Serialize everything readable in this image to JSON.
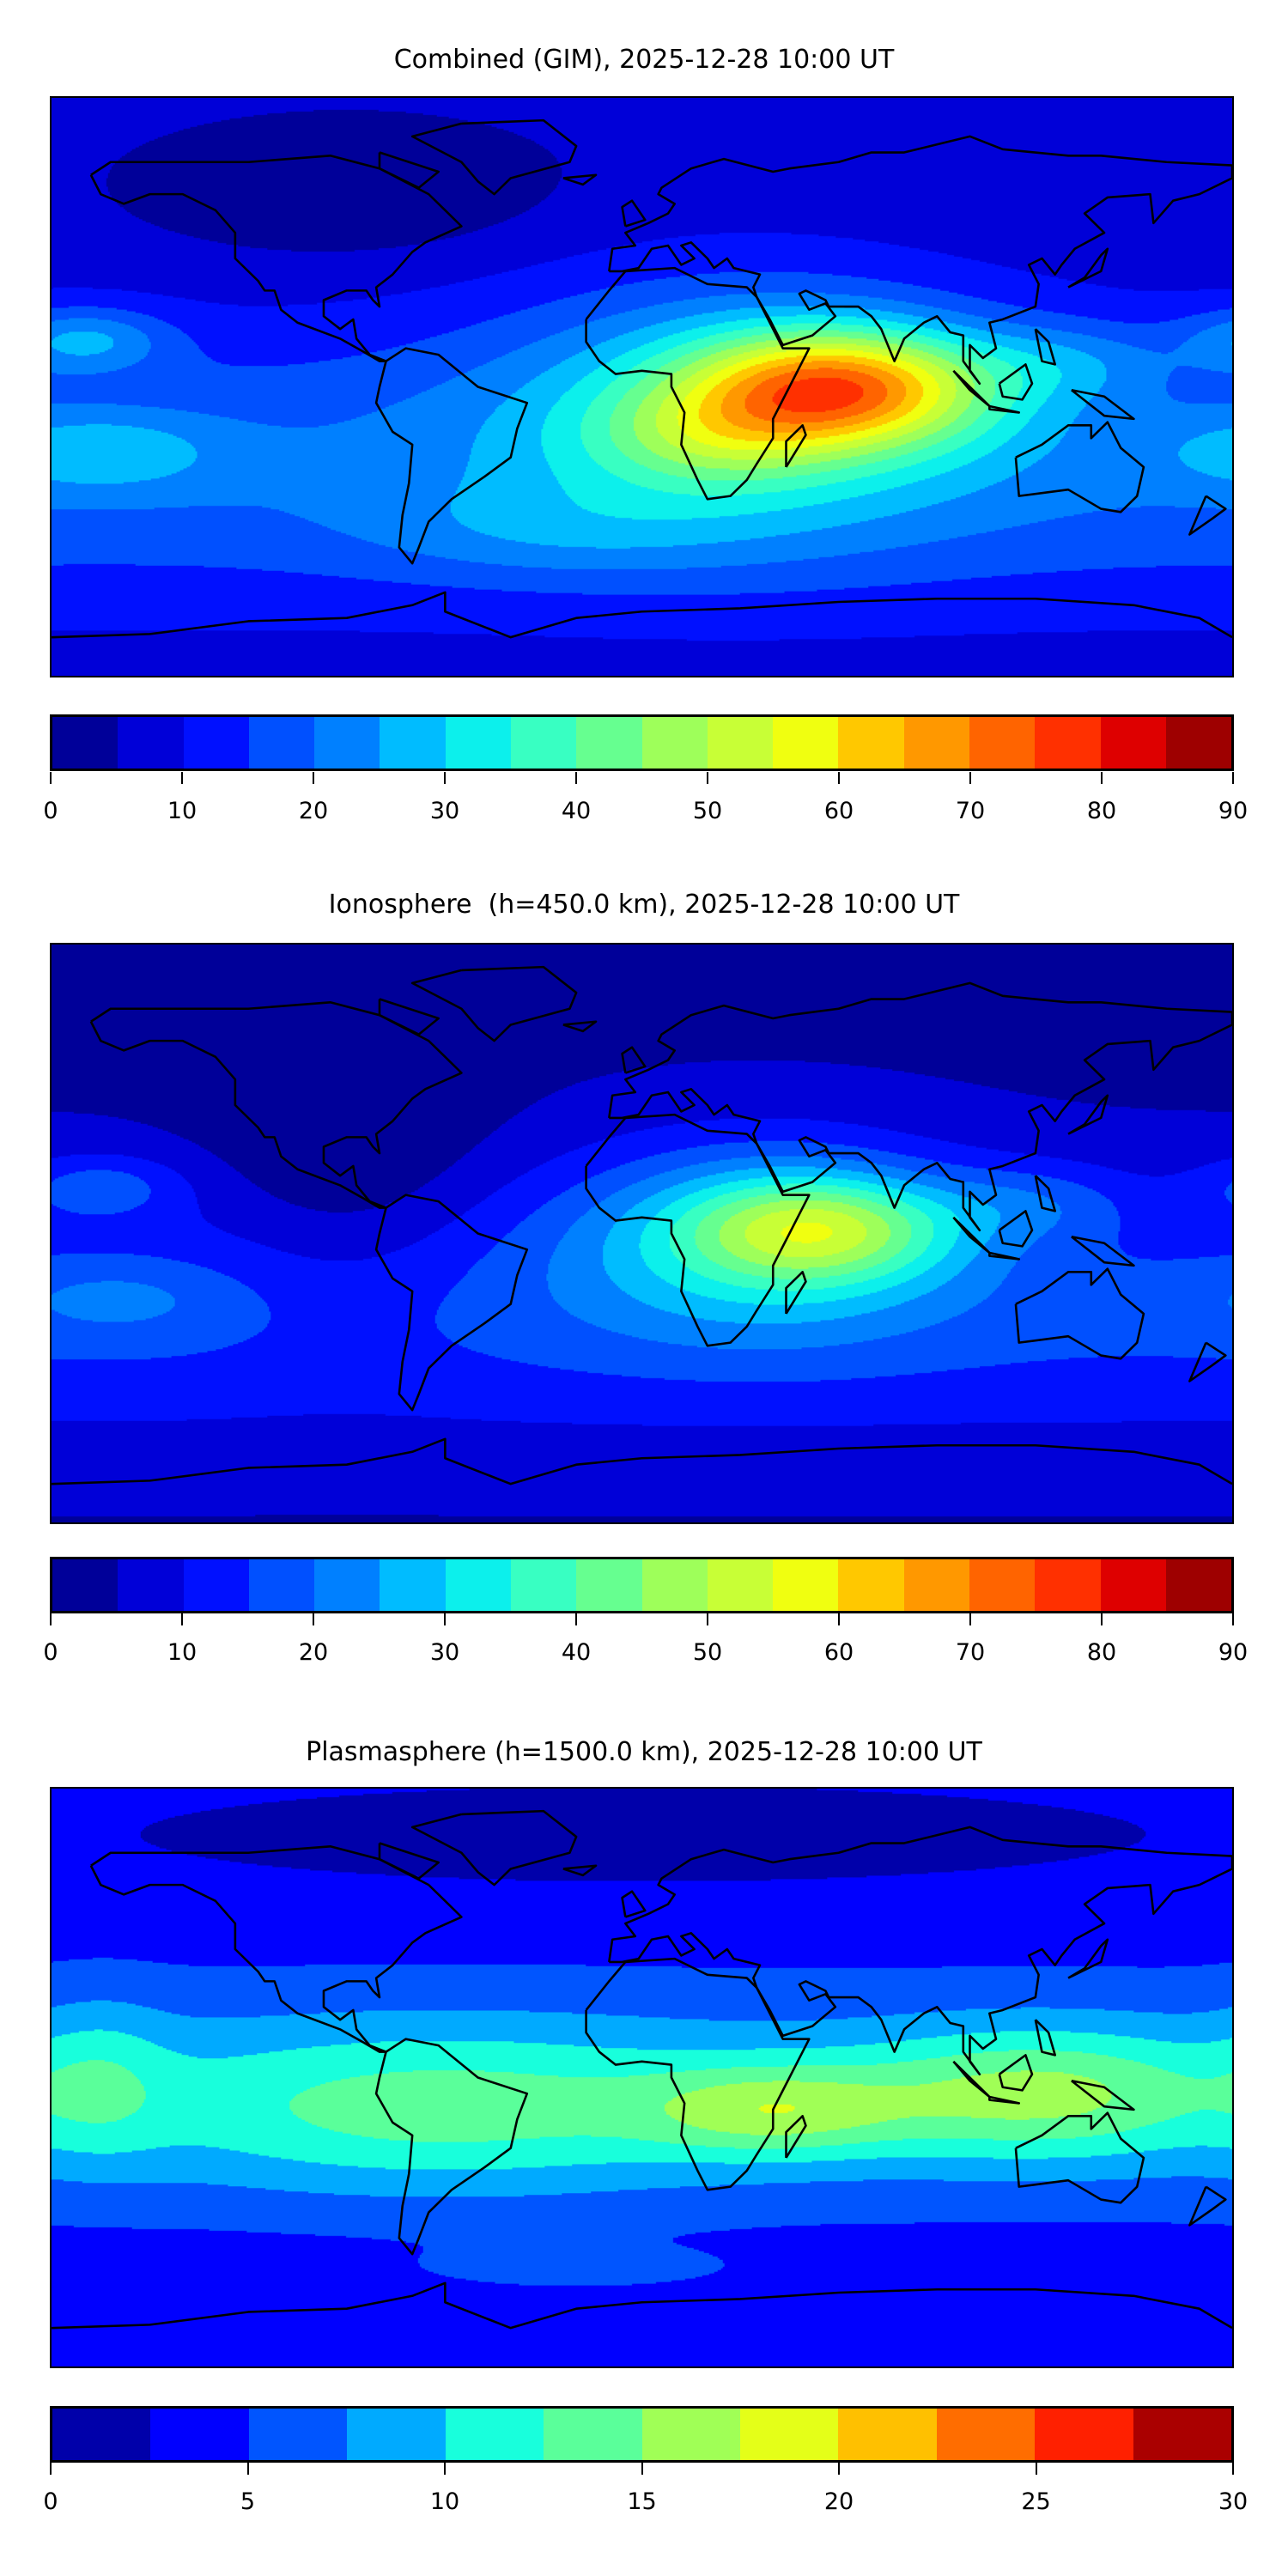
{
  "chart_data": [
    {
      "type": "heatmap",
      "title": "Combined (GIM), 2025-12-28 10:00 UT",
      "projection": "equirectangular world map with coastlines",
      "lon_range": [
        -180,
        180
      ],
      "lat_range": [
        -90,
        90
      ],
      "colorbar": {
        "range": [
          0,
          90
        ],
        "levels": [
          0,
          5,
          10,
          15,
          20,
          25,
          30,
          35,
          40,
          45,
          50,
          55,
          60,
          65,
          70,
          75,
          80,
          85,
          90
        ],
        "ticks": [
          "0",
          "10",
          "20",
          "30",
          "40",
          "50",
          "60",
          "70",
          "80",
          "90"
        ],
        "tick_values": [
          0,
          10,
          20,
          30,
          40,
          50,
          60,
          70,
          80,
          90
        ],
        "colors": [
          "#000099",
          "#0000d8",
          "#0010ff",
          "#0050ff",
          "#0080ff",
          "#00bcff",
          "#0cf0ec",
          "#38ffc2",
          "#66ff90",
          "#9eff5a",
          "#c8ff36",
          "#f0ff10",
          "#ffc800",
          "#ff9800",
          "#ff6400",
          "#ff3000",
          "#de0000",
          "#9e0000"
        ]
      },
      "peak_value_approx": 78,
      "peak_location": "Indian Ocean / East Africa, near equator"
    },
    {
      "type": "heatmap",
      "title": "Ionosphere  (h=450.0 km), 2025-12-28 10:00 UT",
      "projection": "equirectangular world map with coastlines",
      "lon_range": [
        -180,
        180
      ],
      "lat_range": [
        -90,
        90
      ],
      "colorbar": {
        "range": [
          0,
          90
        ],
        "levels": [
          0,
          5,
          10,
          15,
          20,
          25,
          30,
          35,
          40,
          45,
          50,
          55,
          60,
          65,
          70,
          75,
          80,
          85,
          90
        ],
        "ticks": [
          "0",
          "10",
          "20",
          "30",
          "40",
          "50",
          "60",
          "70",
          "80",
          "90"
        ],
        "tick_values": [
          0,
          10,
          20,
          30,
          40,
          50,
          60,
          70,
          80,
          90
        ],
        "colors": [
          "#000099",
          "#0000d8",
          "#0010ff",
          "#0050ff",
          "#0080ff",
          "#00bcff",
          "#0cf0ec",
          "#38ffc2",
          "#66ff90",
          "#9eff5a",
          "#c8ff36",
          "#f0ff10",
          "#ffc800",
          "#ff9800",
          "#ff6400",
          "#ff3000",
          "#de0000",
          "#9e0000"
        ]
      },
      "peak_value_approx": 58,
      "peak_location": "Africa / Arabian Sea"
    },
    {
      "type": "heatmap",
      "title": "Plasmasphere (h=1500.0 km), 2025-12-28 10:00 UT",
      "projection": "equirectangular world map with coastlines",
      "lon_range": [
        -180,
        180
      ],
      "lat_range": [
        -90,
        90
      ],
      "colorbar": {
        "range": [
          0,
          30
        ],
        "levels": [
          0,
          2.5,
          5,
          7.5,
          10,
          12.5,
          15,
          17.5,
          20,
          22.5,
          25,
          27.5,
          30
        ],
        "ticks": [
          "0",
          "5",
          "10",
          "15",
          "20",
          "25",
          "30"
        ],
        "tick_values": [
          0,
          5,
          10,
          15,
          20,
          25,
          30
        ],
        "colors": [
          "#0000aa",
          "#0000ff",
          "#0055ff",
          "#00aaff",
          "#18ffdc",
          "#5aff9a",
          "#a0ff56",
          "#e4ff18",
          "#ffc000",
          "#ff6d00",
          "#ff2000",
          "#aa0000"
        ]
      },
      "peak_value_approx": 19,
      "peak_location": "Maritime Continent and southern Africa"
    }
  ]
}
